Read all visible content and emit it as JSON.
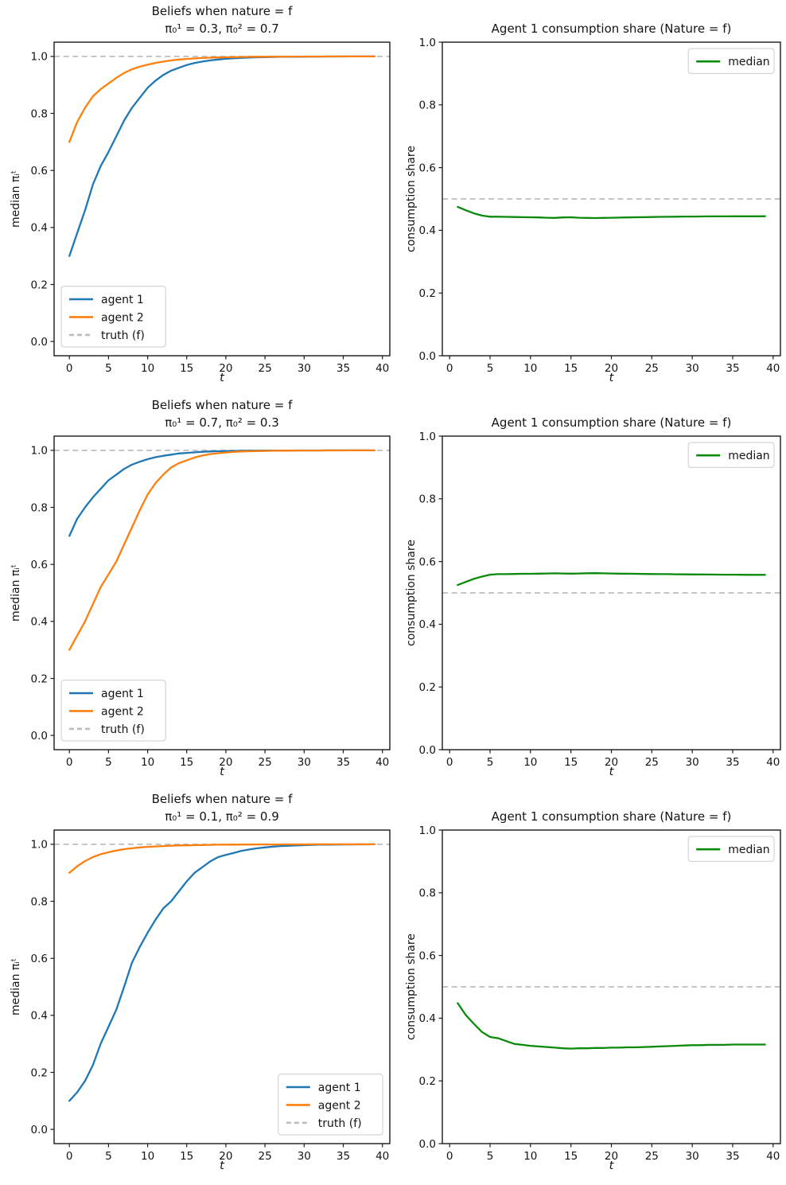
{
  "figure": {
    "background": "#ffffff"
  },
  "colors": {
    "agent1": "#1f77b4",
    "agent2": "#ff7f0e",
    "median": "#0a8a0a",
    "truth": "#bdbdbd",
    "axis": "#1a1a1a"
  },
  "chart_data": [
    {
      "type": "line",
      "title_lines": [
        "Beliefs when nature = f",
        "π₀¹ = 0.3, π₀² = 0.7"
      ],
      "xlabel": "t",
      "ylabel": "median πᵢᵗ",
      "xlim": [
        -1.95,
        40.95
      ],
      "ylim": [
        -0.05,
        1.05
      ],
      "xticks": [
        0,
        5,
        10,
        15,
        20,
        25,
        30,
        35,
        40
      ],
      "ytick_labels": [
        "0.0",
        "0.2",
        "0.4",
        "0.6",
        "0.8",
        "1.0"
      ],
      "grid": false,
      "legend_pos": "lower-left",
      "truth_line": {
        "value": 1.0,
        "label": "truth (f)",
        "in_legend": true
      },
      "series": [
        {
          "name": "agent 1",
          "color": "agent1",
          "x_start": 0,
          "values": [
            0.3,
            0.38,
            0.46,
            0.55,
            0.615,
            0.665,
            0.72,
            0.775,
            0.82,
            0.855,
            0.89,
            0.915,
            0.935,
            0.95,
            0.96,
            0.97,
            0.977,
            0.982,
            0.986,
            0.989,
            0.992,
            0.9935,
            0.995,
            0.996,
            0.997,
            0.9975,
            0.998,
            0.9985,
            0.999,
            0.999,
            0.9993,
            0.9995,
            0.9996,
            0.9997,
            0.9998,
            0.9998,
            0.9999,
            0.9999,
            0.9999,
            1.0
          ]
        },
        {
          "name": "agent 2",
          "color": "agent2",
          "x_start": 0,
          "values": [
            0.7,
            0.77,
            0.82,
            0.86,
            0.885,
            0.905,
            0.925,
            0.942,
            0.955,
            0.964,
            0.971,
            0.977,
            0.982,
            0.986,
            0.989,
            0.991,
            0.993,
            0.9945,
            0.9955,
            0.9965,
            0.997,
            0.9975,
            0.998,
            0.9985,
            0.9988,
            0.999,
            0.9992,
            0.9994,
            0.9995,
            0.9996,
            0.9997,
            0.9997,
            0.9998,
            0.9998,
            0.9999,
            0.9999,
            0.9999,
            1.0,
            1.0,
            1.0
          ]
        }
      ]
    },
    {
      "type": "line",
      "title_lines": [
        "Agent 1 consumption share (Nature = f)"
      ],
      "xlabel": "t",
      "ylabel": "consumption share",
      "xlim": [
        -0.9,
        40.9
      ],
      "ylim": [
        0.0,
        1.0
      ],
      "xticks": [
        0,
        5,
        10,
        15,
        20,
        25,
        30,
        35,
        40
      ],
      "ytick_labels": [
        "0.0",
        "0.2",
        "0.4",
        "0.6",
        "0.8",
        "1.0"
      ],
      "grid": false,
      "legend_pos": "upper-right",
      "truth_line": {
        "value": 0.5,
        "label": "",
        "in_legend": false
      },
      "series": [
        {
          "name": "median",
          "color": "median",
          "x_start": 1,
          "values": [
            0.475,
            0.464,
            0.454,
            0.447,
            0.4435,
            0.4435,
            0.443,
            0.4425,
            0.442,
            0.4415,
            0.441,
            0.44,
            0.4395,
            0.441,
            0.4415,
            0.44,
            0.4395,
            0.439,
            0.4395,
            0.44,
            0.4405,
            0.441,
            0.4415,
            0.442,
            0.4425,
            0.443,
            0.4432,
            0.4435,
            0.4438,
            0.444,
            0.4442,
            0.4444,
            0.4445,
            0.4445,
            0.4446,
            0.4446,
            0.4447,
            0.4447,
            0.4448
          ]
        }
      ]
    },
    {
      "type": "line",
      "title_lines": [
        "Beliefs when nature = f",
        "π₀¹ = 0.7, π₀² = 0.3"
      ],
      "xlabel": "t",
      "ylabel": "median πᵢᵗ",
      "xlim": [
        -1.95,
        40.95
      ],
      "ylim": [
        -0.05,
        1.05
      ],
      "xticks": [
        0,
        5,
        10,
        15,
        20,
        25,
        30,
        35,
        40
      ],
      "ytick_labels": [
        "0.0",
        "0.2",
        "0.4",
        "0.6",
        "0.8",
        "1.0"
      ],
      "grid": false,
      "legend_pos": "lower-left",
      "truth_line": {
        "value": 1.0,
        "label": "truth (f)",
        "in_legend": true
      },
      "series": [
        {
          "name": "agent 1",
          "color": "agent1",
          "x_start": 0,
          "values": [
            0.7,
            0.76,
            0.8,
            0.835,
            0.865,
            0.895,
            0.915,
            0.935,
            0.95,
            0.96,
            0.969,
            0.976,
            0.981,
            0.985,
            0.989,
            0.991,
            0.993,
            0.995,
            0.996,
            0.997,
            0.9975,
            0.998,
            0.9985,
            0.9988,
            0.999,
            0.9992,
            0.9994,
            0.9995,
            0.9996,
            0.9997,
            0.9997,
            0.9998,
            0.9998,
            0.9999,
            0.9999,
            0.9999,
            1.0,
            1.0,
            1.0,
            1.0
          ]
        },
        {
          "name": "agent 2",
          "color": "agent2",
          "x_start": 0,
          "values": [
            0.3,
            0.35,
            0.4,
            0.46,
            0.52,
            0.565,
            0.61,
            0.67,
            0.73,
            0.79,
            0.845,
            0.885,
            0.915,
            0.94,
            0.955,
            0.965,
            0.975,
            0.982,
            0.987,
            0.99,
            0.9925,
            0.9945,
            0.996,
            0.997,
            0.9975,
            0.998,
            0.9985,
            0.9988,
            0.999,
            0.9992,
            0.9994,
            0.9995,
            0.9996,
            0.9997,
            0.9998,
            0.9998,
            0.9999,
            0.9999,
            1.0,
            1.0
          ]
        }
      ]
    },
    {
      "type": "line",
      "title_lines": [
        "Agent 1 consumption share (Nature = f)"
      ],
      "xlabel": "t",
      "ylabel": "consumption share",
      "xlim": [
        -0.9,
        40.9
      ],
      "ylim": [
        0.0,
        1.0
      ],
      "xticks": [
        0,
        5,
        10,
        15,
        20,
        25,
        30,
        35,
        40
      ],
      "ytick_labels": [
        "0.0",
        "0.2",
        "0.4",
        "0.6",
        "0.8",
        "1.0"
      ],
      "grid": false,
      "legend_pos": "upper-right",
      "truth_line": {
        "value": 0.5,
        "label": "",
        "in_legend": false
      },
      "series": [
        {
          "name": "median",
          "color": "median",
          "x_start": 1,
          "values": [
            0.525,
            0.535,
            0.545,
            0.552,
            0.558,
            0.56,
            0.56,
            0.5605,
            0.561,
            0.561,
            0.5615,
            0.562,
            0.5625,
            0.562,
            0.5615,
            0.562,
            0.5628,
            0.563,
            0.5625,
            0.562,
            0.5615,
            0.5612,
            0.5608,
            0.5605,
            0.5602,
            0.56,
            0.5598,
            0.5595,
            0.5592,
            0.559,
            0.5588,
            0.5586,
            0.5584,
            0.5582,
            0.558,
            0.5578,
            0.5576,
            0.5575,
            0.5575
          ]
        }
      ]
    },
    {
      "type": "line",
      "title_lines": [
        "Beliefs when nature = f",
        "π₀¹ = 0.1, π₀² = 0.9"
      ],
      "xlabel": "t",
      "ylabel": "median πᵢᵗ",
      "xlim": [
        -1.95,
        40.95
      ],
      "ylim": [
        -0.05,
        1.05
      ],
      "xticks": [
        0,
        5,
        10,
        15,
        20,
        25,
        30,
        35,
        40
      ],
      "ytick_labels": [
        "0.0",
        "0.2",
        "0.4",
        "0.6",
        "0.8",
        "1.0"
      ],
      "grid": false,
      "legend_pos": "lower-right",
      "truth_line": {
        "value": 1.0,
        "label": "truth (f)",
        "in_legend": true
      },
      "series": [
        {
          "name": "agent 1",
          "color": "agent1",
          "x_start": 0,
          "values": [
            0.1,
            0.13,
            0.17,
            0.225,
            0.3,
            0.36,
            0.42,
            0.5,
            0.585,
            0.64,
            0.69,
            0.735,
            0.775,
            0.8,
            0.835,
            0.87,
            0.9,
            0.92,
            0.94,
            0.955,
            0.963,
            0.97,
            0.977,
            0.982,
            0.986,
            0.989,
            0.992,
            0.994,
            0.995,
            0.996,
            0.997,
            0.998,
            0.9985,
            0.999,
            0.9992,
            0.9994,
            0.9996,
            0.9997,
            0.9998,
            0.9999
          ]
        },
        {
          "name": "agent 2",
          "color": "agent2",
          "x_start": 0,
          "values": [
            0.9,
            0.923,
            0.941,
            0.955,
            0.965,
            0.972,
            0.978,
            0.983,
            0.986,
            0.989,
            0.991,
            0.9925,
            0.994,
            0.995,
            0.996,
            0.9965,
            0.997,
            0.9975,
            0.998,
            0.9985,
            0.9988,
            0.999,
            0.9992,
            0.9993,
            0.9994,
            0.9995,
            0.9996,
            0.9997,
            0.9997,
            0.9998,
            0.9998,
            0.9999,
            0.9999,
            0.9999,
            1.0,
            1.0,
            1.0,
            1.0,
            1.0,
            1.0
          ]
        }
      ]
    },
    {
      "type": "line",
      "title_lines": [
        "Agent 1 consumption share (Nature = f)"
      ],
      "xlabel": "t",
      "ylabel": "consumption share",
      "xlim": [
        -0.9,
        40.9
      ],
      "ylim": [
        0.0,
        1.0
      ],
      "xticks": [
        0,
        5,
        10,
        15,
        20,
        25,
        30,
        35,
        40
      ],
      "ytick_labels": [
        "0.0",
        "0.2",
        "0.4",
        "0.6",
        "0.8",
        "1.0"
      ],
      "grid": false,
      "legend_pos": "upper-right",
      "truth_line": {
        "value": 0.5,
        "label": "",
        "in_legend": false
      },
      "series": [
        {
          "name": "median",
          "color": "median",
          "x_start": 1,
          "values": [
            0.448,
            0.41,
            0.382,
            0.356,
            0.34,
            0.336,
            0.327,
            0.318,
            0.315,
            0.312,
            0.31,
            0.308,
            0.306,
            0.304,
            0.303,
            0.304,
            0.304,
            0.305,
            0.305,
            0.306,
            0.306,
            0.307,
            0.307,
            0.308,
            0.309,
            0.31,
            0.311,
            0.312,
            0.313,
            0.314,
            0.314,
            0.315,
            0.315,
            0.315,
            0.316,
            0.316,
            0.316,
            0.316,
            0.316
          ]
        }
      ]
    }
  ]
}
